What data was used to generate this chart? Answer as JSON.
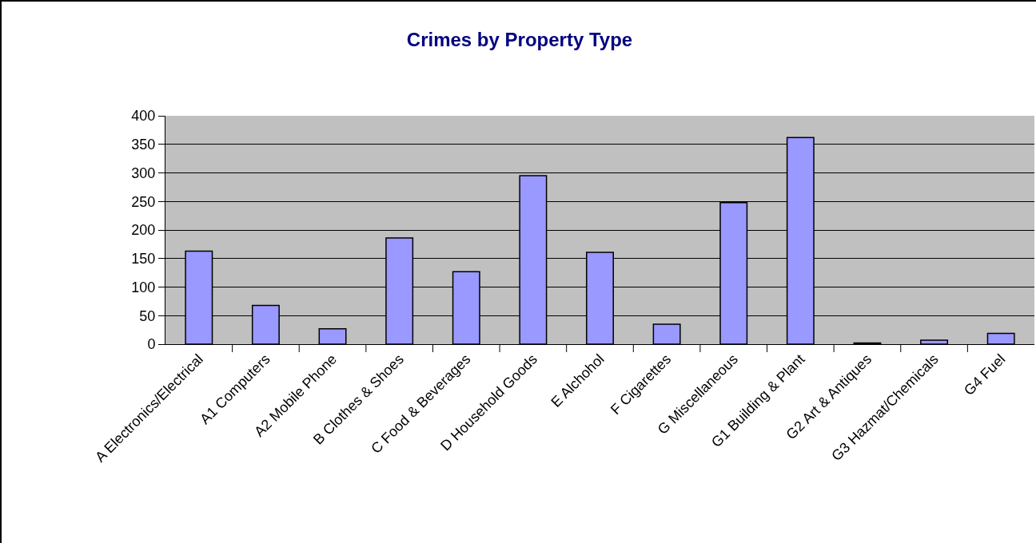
{
  "chart_data": {
    "type": "bar",
    "title": "Crimes by Property Type",
    "categories": [
      "A Electronics/Electrical",
      "A1 Computers",
      "A2 Mobile Phone",
      "B Clothes & Shoes",
      "C Food & Beverages",
      "D Household Goods",
      "E Alchohol",
      "F Cigarettes",
      "G Miscellaneous",
      "G1 Building & Plant",
      "G2 Art & Antiques",
      "G3 Hazmat/Chemicals",
      "G4 Fuel"
    ],
    "values": [
      163,
      68,
      27,
      186,
      127,
      295,
      161,
      35,
      248,
      362,
      2,
      7,
      19
    ],
    "color": "#9999ff",
    "ylim": [
      0,
      400
    ],
    "yticks": [
      0,
      50,
      100,
      150,
      200,
      250,
      300,
      350,
      400
    ],
    "grid": "y",
    "legend": false
  }
}
